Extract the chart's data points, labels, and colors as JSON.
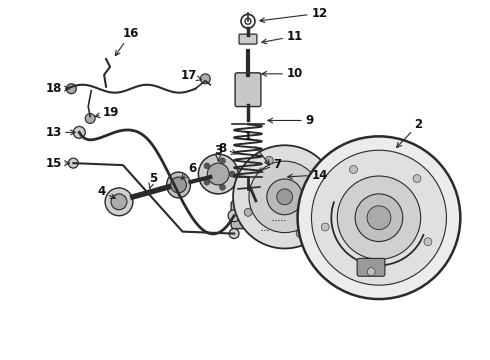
{
  "bg_color": "#ffffff",
  "line_color": "#2a2a2a",
  "text_color": "#111111",
  "label_fontsize": 8.5,
  "label_fontweight": "bold"
}
